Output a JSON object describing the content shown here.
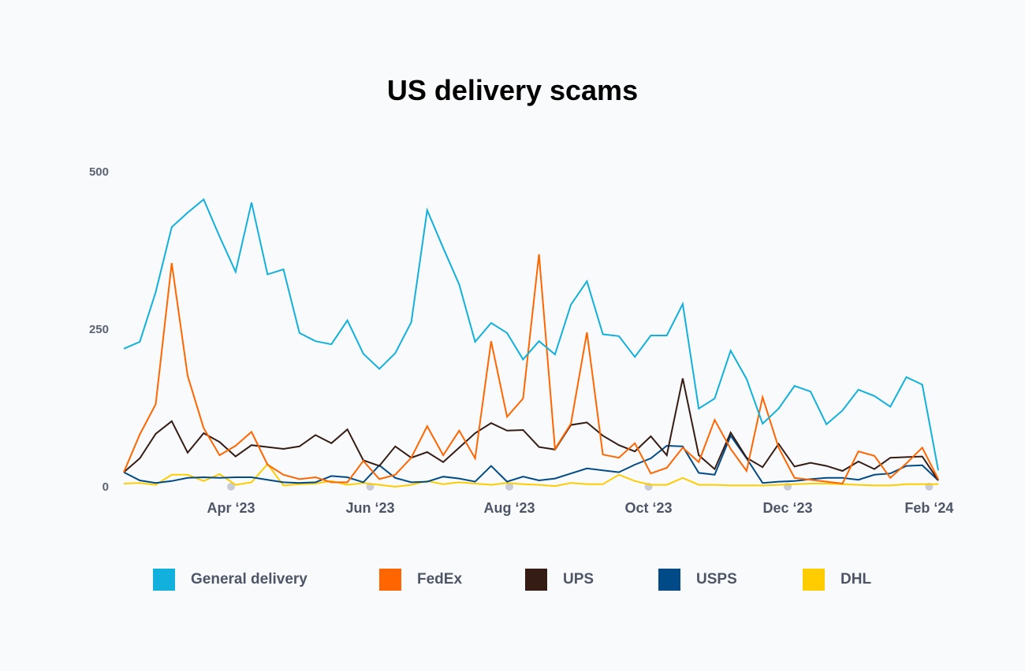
{
  "chart_data": {
    "type": "line",
    "title": "US delivery scams",
    "xlabel": "",
    "ylabel": "",
    "ylim": [
      0,
      500
    ],
    "y_ticks": [
      0,
      250,
      500
    ],
    "y_tick_labels": [
      "0",
      "250",
      "500"
    ],
    "gridlines_at": [
      0,
      125,
      250,
      375,
      500
    ],
    "grid": true,
    "legend_position": "bottom",
    "x_ticks": [
      {
        "date": "2023-04-01",
        "label": "Apr ‘23"
      },
      {
        "date": "2023-06-01",
        "label": "Jun ‘23"
      },
      {
        "date": "2023-08-01",
        "label": "Aug ‘23"
      },
      {
        "date": "2023-10-01",
        "label": "Oct ‘23"
      },
      {
        "date": "2023-12-01",
        "label": "Dec ‘23"
      },
      {
        "date": "2024-02-01",
        "label": "Feb ‘24"
      }
    ],
    "x": [
      "2023-02-13",
      "2023-02-20",
      "2023-02-27",
      "2023-03-06",
      "2023-03-13",
      "2023-03-20",
      "2023-03-27",
      "2023-04-03",
      "2023-04-10",
      "2023-04-17",
      "2023-04-24",
      "2023-05-01",
      "2023-05-08",
      "2023-05-15",
      "2023-05-22",
      "2023-05-29",
      "2023-06-05",
      "2023-06-12",
      "2023-06-19",
      "2023-06-26",
      "2023-07-03",
      "2023-07-10",
      "2023-07-17",
      "2023-07-24",
      "2023-07-31",
      "2023-08-07",
      "2023-08-14",
      "2023-08-21",
      "2023-08-28",
      "2023-09-04",
      "2023-09-11",
      "2023-09-18",
      "2023-09-25",
      "2023-10-02",
      "2023-10-09",
      "2023-10-16",
      "2023-10-23",
      "2023-10-30",
      "2023-11-06",
      "2023-11-13",
      "2023-11-20",
      "2023-11-27",
      "2023-12-04",
      "2023-12-11",
      "2023-12-18",
      "2023-12-25",
      "2024-01-01",
      "2024-01-08",
      "2024-01-15",
      "2024-01-22",
      "2024-01-29",
      "2024-02-05"
    ],
    "series": [
      {
        "name": "General delivery",
        "color": "#12b0dc",
        "values": [
          219,
          230,
          309,
          412,
          435,
          456,
          397,
          341,
          451,
          337,
          345,
          244,
          231,
          226,
          264,
          211,
          187,
          212,
          261,
          439,
          379,
          321,
          230,
          260,
          244,
          202,
          231,
          210,
          289,
          326,
          242,
          239,
          206,
          240,
          240,
          290,
          124,
          140,
          216,
          171,
          100,
          124,
          160,
          151,
          99,
          121,
          154,
          144,
          127,
          174,
          162,
          26
        ]
      },
      {
        "name": "FedEx",
        "color": "#ff6600",
        "values": [
          23,
          83,
          131,
          355,
          176,
          93,
          50,
          65,
          87,
          35,
          19,
          12,
          15,
          7,
          7,
          41,
          12,
          19,
          46,
          96,
          50,
          89,
          45,
          231,
          111,
          140,
          369,
          60,
          100,
          245,
          51,
          46,
          69,
          21,
          30,
          62,
          39,
          106,
          60,
          25,
          142,
          62,
          14,
          11,
          8,
          5,
          56,
          49,
          14,
          37,
          62,
          12
        ]
      },
      {
        "name": "UPS",
        "color": "#351c15",
        "values": [
          23,
          45,
          84,
          104,
          54,
          85,
          71,
          48,
          66,
          63,
          60,
          64,
          82,
          69,
          91,
          42,
          33,
          64,
          46,
          55,
          39,
          62,
          85,
          101,
          89,
          90,
          63,
          59,
          98,
          102,
          81,
          66,
          56,
          80,
          50,
          172,
          50,
          28,
          86,
          46,
          31,
          68,
          32,
          38,
          33,
          25,
          40,
          28,
          46,
          47,
          48,
          10
        ]
      },
      {
        "name": "USPS",
        "color": "#004b87",
        "values": [
          23,
          10,
          6,
          9,
          14,
          15,
          14,
          15,
          15,
          11,
          7,
          6,
          7,
          17,
          15,
          7,
          34,
          14,
          7,
          8,
          16,
          13,
          8,
          33,
          8,
          16,
          10,
          13,
          21,
          29,
          26,
          23,
          35,
          45,
          65,
          64,
          22,
          19,
          81,
          45,
          6,
          8,
          9,
          12,
          14,
          14,
          11,
          19,
          21,
          33,
          34,
          10
        ]
      },
      {
        "name": "DHL",
        "color": "#ffcc00",
        "values": [
          5,
          6,
          3,
          19,
          19,
          9,
          20,
          3,
          7,
          36,
          2,
          4,
          5,
          9,
          3,
          6,
          3,
          0,
          3,
          9,
          4,
          7,
          5,
          3,
          6,
          4,
          3,
          1,
          6,
          4,
          4,
          19,
          9,
          3,
          3,
          14,
          3,
          3,
          2,
          2,
          2,
          3,
          4,
          5,
          5,
          4,
          3,
          2,
          2,
          4,
          4,
          4
        ]
      }
    ]
  }
}
